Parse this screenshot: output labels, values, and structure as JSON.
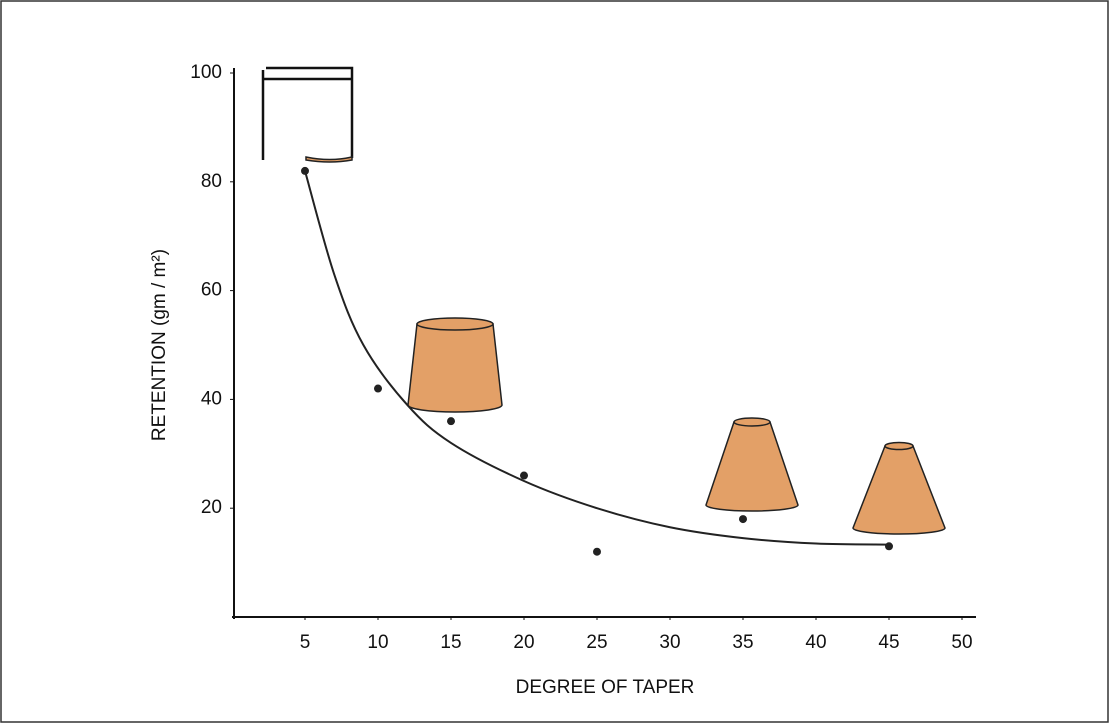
{
  "chart_data": {
    "type": "scatter",
    "xlabel": "DEGREE OF TAPER",
    "ylabel": "RETENTION (gm / m²)",
    "xlim": [
      0,
      50
    ],
    "xticks": [
      5,
      10,
      15,
      20,
      25,
      30,
      35,
      40,
      45,
      50
    ],
    "ylim": [
      0,
      100
    ],
    "yticks": [
      20,
      40,
      60,
      80,
      100
    ],
    "series": [
      {
        "type": "scatter",
        "color": "#222222",
        "x": [
          5,
          10,
          15,
          20,
          25,
          35,
          45
        ],
        "values": [
          82,
          42,
          36,
          26,
          12,
          18,
          13
        ]
      },
      {
        "type": "line",
        "color": "#222222",
        "x": [
          5,
          7,
          9,
          12,
          15,
          20,
          25,
          30,
          35,
          40,
          45
        ],
        "values": [
          82,
          63,
          50,
          39,
          32,
          25,
          20,
          16.5,
          14.5,
          13.5,
          13.3
        ]
      }
    ]
  }
}
